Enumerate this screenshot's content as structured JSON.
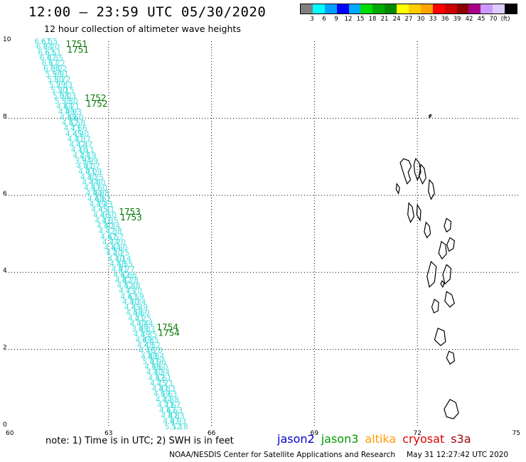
{
  "header": {
    "title": "12:00 – 23:59 UTC 05/30/2020",
    "subtitle": "12 hour collection of altimeter wave heights"
  },
  "legend": {
    "colors": [
      "#808080",
      "#00ffff",
      "#00a0ff",
      "#0000ff",
      "#00aaff",
      "#00dd00",
      "#00aa00",
      "#008800",
      "#ffff00",
      "#ffcc00",
      "#ffa500",
      "#ff0000",
      "#cc0000",
      "#880000",
      "#aa0088",
      "#cc99ff",
      "#ddccff",
      "#000000"
    ],
    "labels": [
      "3",
      "6",
      "9",
      "12",
      "15",
      "18",
      "21",
      "24",
      "27",
      "30",
      "33",
      "36",
      "39",
      "42",
      "45",
      "70",
      "(ft)"
    ]
  },
  "map": {
    "lon_range": [
      60,
      75
    ],
    "lat_range": [
      0,
      10
    ],
    "lon_ticks": [
      "60",
      "63",
      "66",
      "69",
      "72",
      "75"
    ],
    "lat_ticks": [
      "0",
      "2",
      "4",
      "6",
      "8",
      "10"
    ],
    "track_color": "#44dddd",
    "time_color": "#007700",
    "track_a": {
      "start": [
        61.0,
        10.0
      ],
      "end": [
        64.8,
        0.0
      ],
      "values": [
        "6.61",
        "6.74",
        "6.63",
        "6.47",
        "6.17",
        "6.06",
        "5.98",
        "5.80",
        "5.29",
        "5.20",
        "5.08",
        "5.38",
        "4.64",
        "4.99",
        "4.68",
        "4.52",
        "4.73",
        "4.45",
        "4.31",
        "4.42",
        "4.16",
        "4.24",
        "3.94",
        "4.02",
        "4.03",
        "4.30",
        "4.44",
        "4.57",
        "4.94",
        "4.68",
        "4.39",
        "4.45",
        "4.46",
        "4.31",
        "4.30",
        "4.42",
        "4.61",
        "4.74",
        "4.64",
        "4.20",
        "4.10",
        "4.58",
        "4.81",
        "4.62",
        "4.82",
        "4.52",
        "4.73",
        "4.63",
        "4.30",
        "4.45",
        "4.56",
        "4.21",
        "4.40",
        "3.99",
        "4.39",
        "4.89",
        "4.48",
        "4.16",
        "4.88",
        "5.01",
        "4.56",
        "4.30",
        "4.57",
        "4.75",
        "4.87",
        "4.59",
        "4.34",
        "4.71",
        "4.67",
        "4.87",
        "4.97",
        "5.12"
      ]
    },
    "track_b": {
      "start": [
        61.2,
        10.0
      ],
      "end": [
        65.0,
        0.0
      ],
      "values": [
        "6.55",
        "6.70",
        "6.51",
        "6.35",
        "6.22",
        "6.02",
        "5.91",
        "5.72",
        "5.33",
        "5.15",
        "5.03",
        "5.30",
        "4.71",
        "4.93",
        "4.60",
        "4.58",
        "4.66",
        "4.40",
        "4.37",
        "4.47",
        "4.11",
        "4.19",
        "3.99",
        "4.07",
        "4.09",
        "4.25",
        "4.40",
        "4.60",
        "4.88",
        "4.62",
        "4.43",
        "4.41",
        "4.50",
        "4.35",
        "4.34",
        "4.38",
        "4.57",
        "4.70",
        "4.60",
        "4.25",
        "4.14",
        "4.55",
        "4.77",
        "4.66",
        "4.78",
        "4.48",
        "4.70",
        "4.59",
        "4.34",
        "4.49",
        "4.60",
        "4.25",
        "4.44",
        "4.03",
        "4.35",
        "4.85",
        "4.52",
        "4.20",
        "4.84",
        "4.96",
        "4.60",
        "4.34",
        "4.61",
        "4.71",
        "4.83",
        "4.63",
        "4.38",
        "4.67",
        "4.63",
        "4.83",
        "4.93",
        "5.18"
      ]
    },
    "time_labels": [
      {
        "text": "1751",
        "lon": 61.75,
        "lat": 9.85
      },
      {
        "text": "1752",
        "lon": 62.3,
        "lat": 8.45
      },
      {
        "text": "1753",
        "lon": 63.3,
        "lat": 5.5
      },
      {
        "text": "1754",
        "lon": 64.4,
        "lat": 2.5
      }
    ],
    "islands": [
      [
        [
          72.35,
          8.02
        ],
        [
          72.4,
          8.06
        ],
        [
          72.39,
          8.1
        ],
        [
          72.34,
          8.07
        ]
      ],
      [
        [
          71.6,
          6.95
        ],
        [
          71.75,
          6.9
        ],
        [
          71.82,
          6.75
        ],
        [
          71.73,
          6.6
        ],
        [
          71.8,
          6.4
        ],
        [
          71.7,
          6.3
        ],
        [
          71.62,
          6.5
        ],
        [
          71.55,
          6.7
        ],
        [
          71.5,
          6.85
        ]
      ],
      [
        [
          71.95,
          6.95
        ],
        [
          72.05,
          6.85
        ],
        [
          72.1,
          6.6
        ],
        [
          72.0,
          6.4
        ],
        [
          71.92,
          6.6
        ],
        [
          71.9,
          6.8
        ]
      ],
      [
        [
          72.1,
          6.8
        ],
        [
          72.2,
          6.7
        ],
        [
          72.25,
          6.45
        ],
        [
          72.15,
          6.3
        ],
        [
          72.05,
          6.5
        ]
      ],
      [
        [
          72.35,
          6.4
        ],
        [
          72.45,
          6.3
        ],
        [
          72.5,
          6.05
        ],
        [
          72.4,
          5.9
        ],
        [
          72.32,
          6.1
        ]
      ],
      [
        [
          71.4,
          6.3
        ],
        [
          71.48,
          6.2
        ],
        [
          71.45,
          6.05
        ],
        [
          71.38,
          6.15
        ]
      ],
      [
        [
          71.75,
          5.8
        ],
        [
          71.85,
          5.7
        ],
        [
          71.9,
          5.45
        ],
        [
          71.8,
          5.3
        ],
        [
          71.72,
          5.5
        ]
      ],
      [
        [
          72.0,
          5.75
        ],
        [
          72.1,
          5.6
        ],
        [
          72.08,
          5.35
        ],
        [
          71.98,
          5.5
        ]
      ],
      [
        [
          72.25,
          5.3
        ],
        [
          72.35,
          5.2
        ],
        [
          72.38,
          5.0
        ],
        [
          72.28,
          4.9
        ],
        [
          72.2,
          5.05
        ]
      ],
      [
        [
          72.85,
          5.4
        ],
        [
          72.98,
          5.32
        ],
        [
          72.96,
          5.12
        ],
        [
          72.85,
          5.05
        ],
        [
          72.78,
          5.2
        ]
      ],
      [
        [
          72.95,
          4.9
        ],
        [
          73.08,
          4.82
        ],
        [
          73.05,
          4.62
        ],
        [
          72.92,
          4.55
        ],
        [
          72.86,
          4.72
        ]
      ],
      [
        [
          72.7,
          4.8
        ],
        [
          72.82,
          4.72
        ],
        [
          72.85,
          4.48
        ],
        [
          72.72,
          4.35
        ],
        [
          72.62,
          4.5
        ]
      ],
      [
        [
          72.85,
          4.2
        ],
        [
          72.98,
          4.1
        ],
        [
          72.95,
          3.82
        ],
        [
          72.8,
          3.7
        ],
        [
          72.74,
          3.95
        ]
      ],
      [
        [
          72.72,
          3.78
        ],
        [
          72.78,
          3.72
        ],
        [
          72.74,
          3.62
        ],
        [
          72.68,
          3.7
        ]
      ],
      [
        [
          72.4,
          4.28
        ],
        [
          72.55,
          4.15
        ],
        [
          72.5,
          3.75
        ],
        [
          72.35,
          3.62
        ],
        [
          72.28,
          3.9
        ]
      ],
      [
        [
          72.85,
          3.5
        ],
        [
          73.0,
          3.42
        ],
        [
          73.08,
          3.2
        ],
        [
          72.95,
          3.1
        ],
        [
          72.8,
          3.25
        ]
      ],
      [
        [
          72.5,
          3.3
        ],
        [
          72.62,
          3.22
        ],
        [
          72.6,
          3.0
        ],
        [
          72.48,
          2.95
        ],
        [
          72.42,
          3.1
        ]
      ],
      [
        [
          72.6,
          2.55
        ],
        [
          72.78,
          2.48
        ],
        [
          72.82,
          2.2
        ],
        [
          72.68,
          2.1
        ],
        [
          72.5,
          2.25
        ]
      ],
      [
        [
          72.92,
          1.95
        ],
        [
          73.05,
          1.9
        ],
        [
          73.08,
          1.7
        ],
        [
          72.95,
          1.62
        ],
        [
          72.85,
          1.78
        ]
      ],
      [
        [
          72.95,
          0.7
        ],
        [
          73.12,
          0.62
        ],
        [
          73.2,
          0.35
        ],
        [
          73.05,
          0.2
        ],
        [
          72.85,
          0.25
        ],
        [
          72.78,
          0.45
        ]
      ]
    ]
  },
  "note": "note:  1) Time is in UTC;  2) SWH is in feet",
  "satellites": [
    {
      "name": "jason2",
      "color": "#0000cc"
    },
    {
      "name": "jason3",
      "color": "#009900"
    },
    {
      "name": "altika",
      "color": "#ff9900"
    },
    {
      "name": "cryosat",
      "color": "#dd0000"
    },
    {
      "name": "s3a",
      "color": "#990000"
    }
  ],
  "credit": {
    "center": "NOAA/NESDIS Center for Satellite Applications and Research",
    "timestamp": "May 31 12:27:42 UTC 2020"
  }
}
